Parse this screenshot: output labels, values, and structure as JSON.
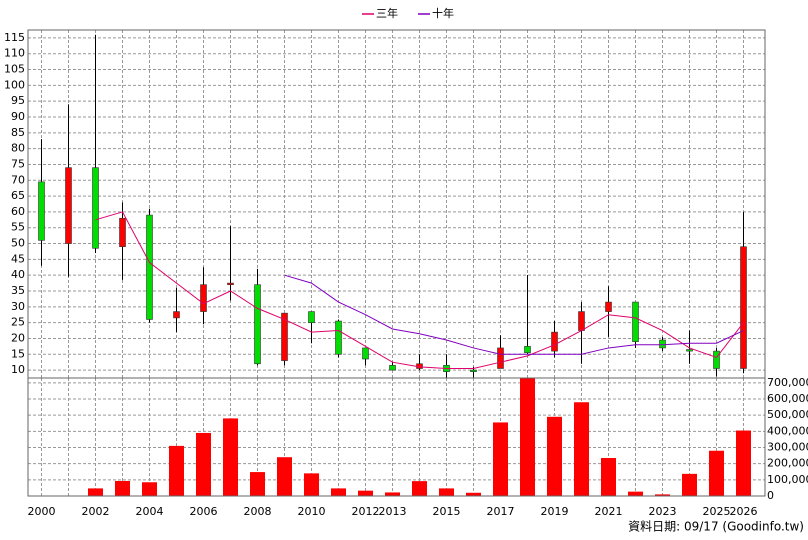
{
  "chart_data": [
    {
      "type": "candlestick",
      "open": [
        69.5,
        50,
        74,
        49,
        59,
        26.5,
        28.5,
        37,
        37,
        13,
        28.5,
        25.5,
        17,
        11.5,
        10.5,
        11.5,
        10,
        10.5,
        17.5,
        16,
        22.5,
        28.5,
        31.5,
        19.5,
        16.5,
        16,
        10.5
      ],
      "high": [
        83,
        94,
        116,
        63,
        61,
        36,
        42.5,
        55.5,
        42,
        28,
        28.5,
        26,
        17,
        12.5,
        15,
        15,
        11,
        21,
        40,
        25.5,
        31.5,
        36.5,
        31.5,
        20.5,
        22.5,
        17,
        60
      ],
      "low": [
        43,
        39.5,
        47,
        38.5,
        25,
        22,
        24.5,
        32,
        11.5,
        11.5,
        18.5,
        14,
        11.5,
        10,
        10,
        7.5,
        7.5,
        10.5,
        15,
        14,
        12,
        20.5,
        17,
        16,
        12,
        8,
        9
      ],
      "close": [
        51,
        74,
        48.5,
        58,
        26,
        28.5,
        37,
        37.5,
        12,
        28,
        25,
        15,
        13.5,
        10,
        12,
        9.5,
        9.5,
        17,
        15.5,
        22,
        28.5,
        31.5,
        19,
        17,
        16,
        10.5,
        49
      ],
      "up_color": "#ff0000",
      "down_color": "#00dd00",
      "series": [
        {
          "name": "三年",
          "color": "#e0006a",
          "values": [
            null,
            null,
            57.5,
            60,
            44,
            37.5,
            31,
            35,
            29.5,
            26,
            22,
            22.5,
            17.5,
            12.5,
            11,
            10.5,
            10.5,
            12.5,
            14.5,
            18,
            22.5,
            27.5,
            26.5,
            22.5,
            17,
            14,
            25
          ]
        },
        {
          "name": "十年",
          "color": "#8000c0",
          "values": [
            null,
            null,
            null,
            null,
            null,
            null,
            null,
            null,
            null,
            40,
            37.5,
            31.5,
            27.5,
            23,
            21.5,
            19.5,
            17,
            15,
            15,
            15,
            15,
            17,
            18,
            18,
            18.5,
            18.5,
            22.5
          ]
        }
      ],
      "ylim": [
        7.5,
        117.5
      ],
      "yticks": [
        10,
        15,
        20,
        25,
        30,
        35,
        40,
        45,
        50,
        55,
        60,
        65,
        70,
        75,
        80,
        85,
        90,
        95,
        100,
        105,
        110,
        115
      ],
      "grid": true
    },
    {
      "type": "bar",
      "categories": [
        "2000",
        null,
        "2002",
        null,
        "2004",
        null,
        "2006",
        null,
        "2008",
        null,
        "2010",
        null,
        "2012",
        "2013",
        null,
        "2015",
        null,
        "2017",
        null,
        "2019",
        null,
        "2021",
        null,
        "2023",
        null,
        "2025",
        "2026"
      ],
      "values": [
        1000,
        2000,
        47000,
        93000,
        85000,
        310000,
        390000,
        480000,
        148000,
        240000,
        140000,
        47000,
        33000,
        22000,
        92000,
        47000,
        20000,
        455000,
        727000,
        490000,
        580000,
        235000,
        27000,
        10000,
        137000,
        280000,
        405000
      ],
      "color": "#ff0000",
      "ylim": [
        0,
        730000
      ],
      "yticks": [
        0,
        {
          "value": 100000,
          "label": "100,000"
        },
        {
          "value": 200000,
          "label": "200,000"
        },
        {
          "value": 300000,
          "label": "300,000"
        },
        {
          "value": 400000,
          "label": "400,000"
        },
        {
          "value": 500000,
          "label": "500,000"
        },
        {
          "value": 600000,
          "label": "600,000"
        },
        {
          "value": 700000,
          "label": "700,000"
        }
      ],
      "grid": true,
      "annotation": "資料日期: 09/17 (Goodinfo.tw)"
    }
  ]
}
